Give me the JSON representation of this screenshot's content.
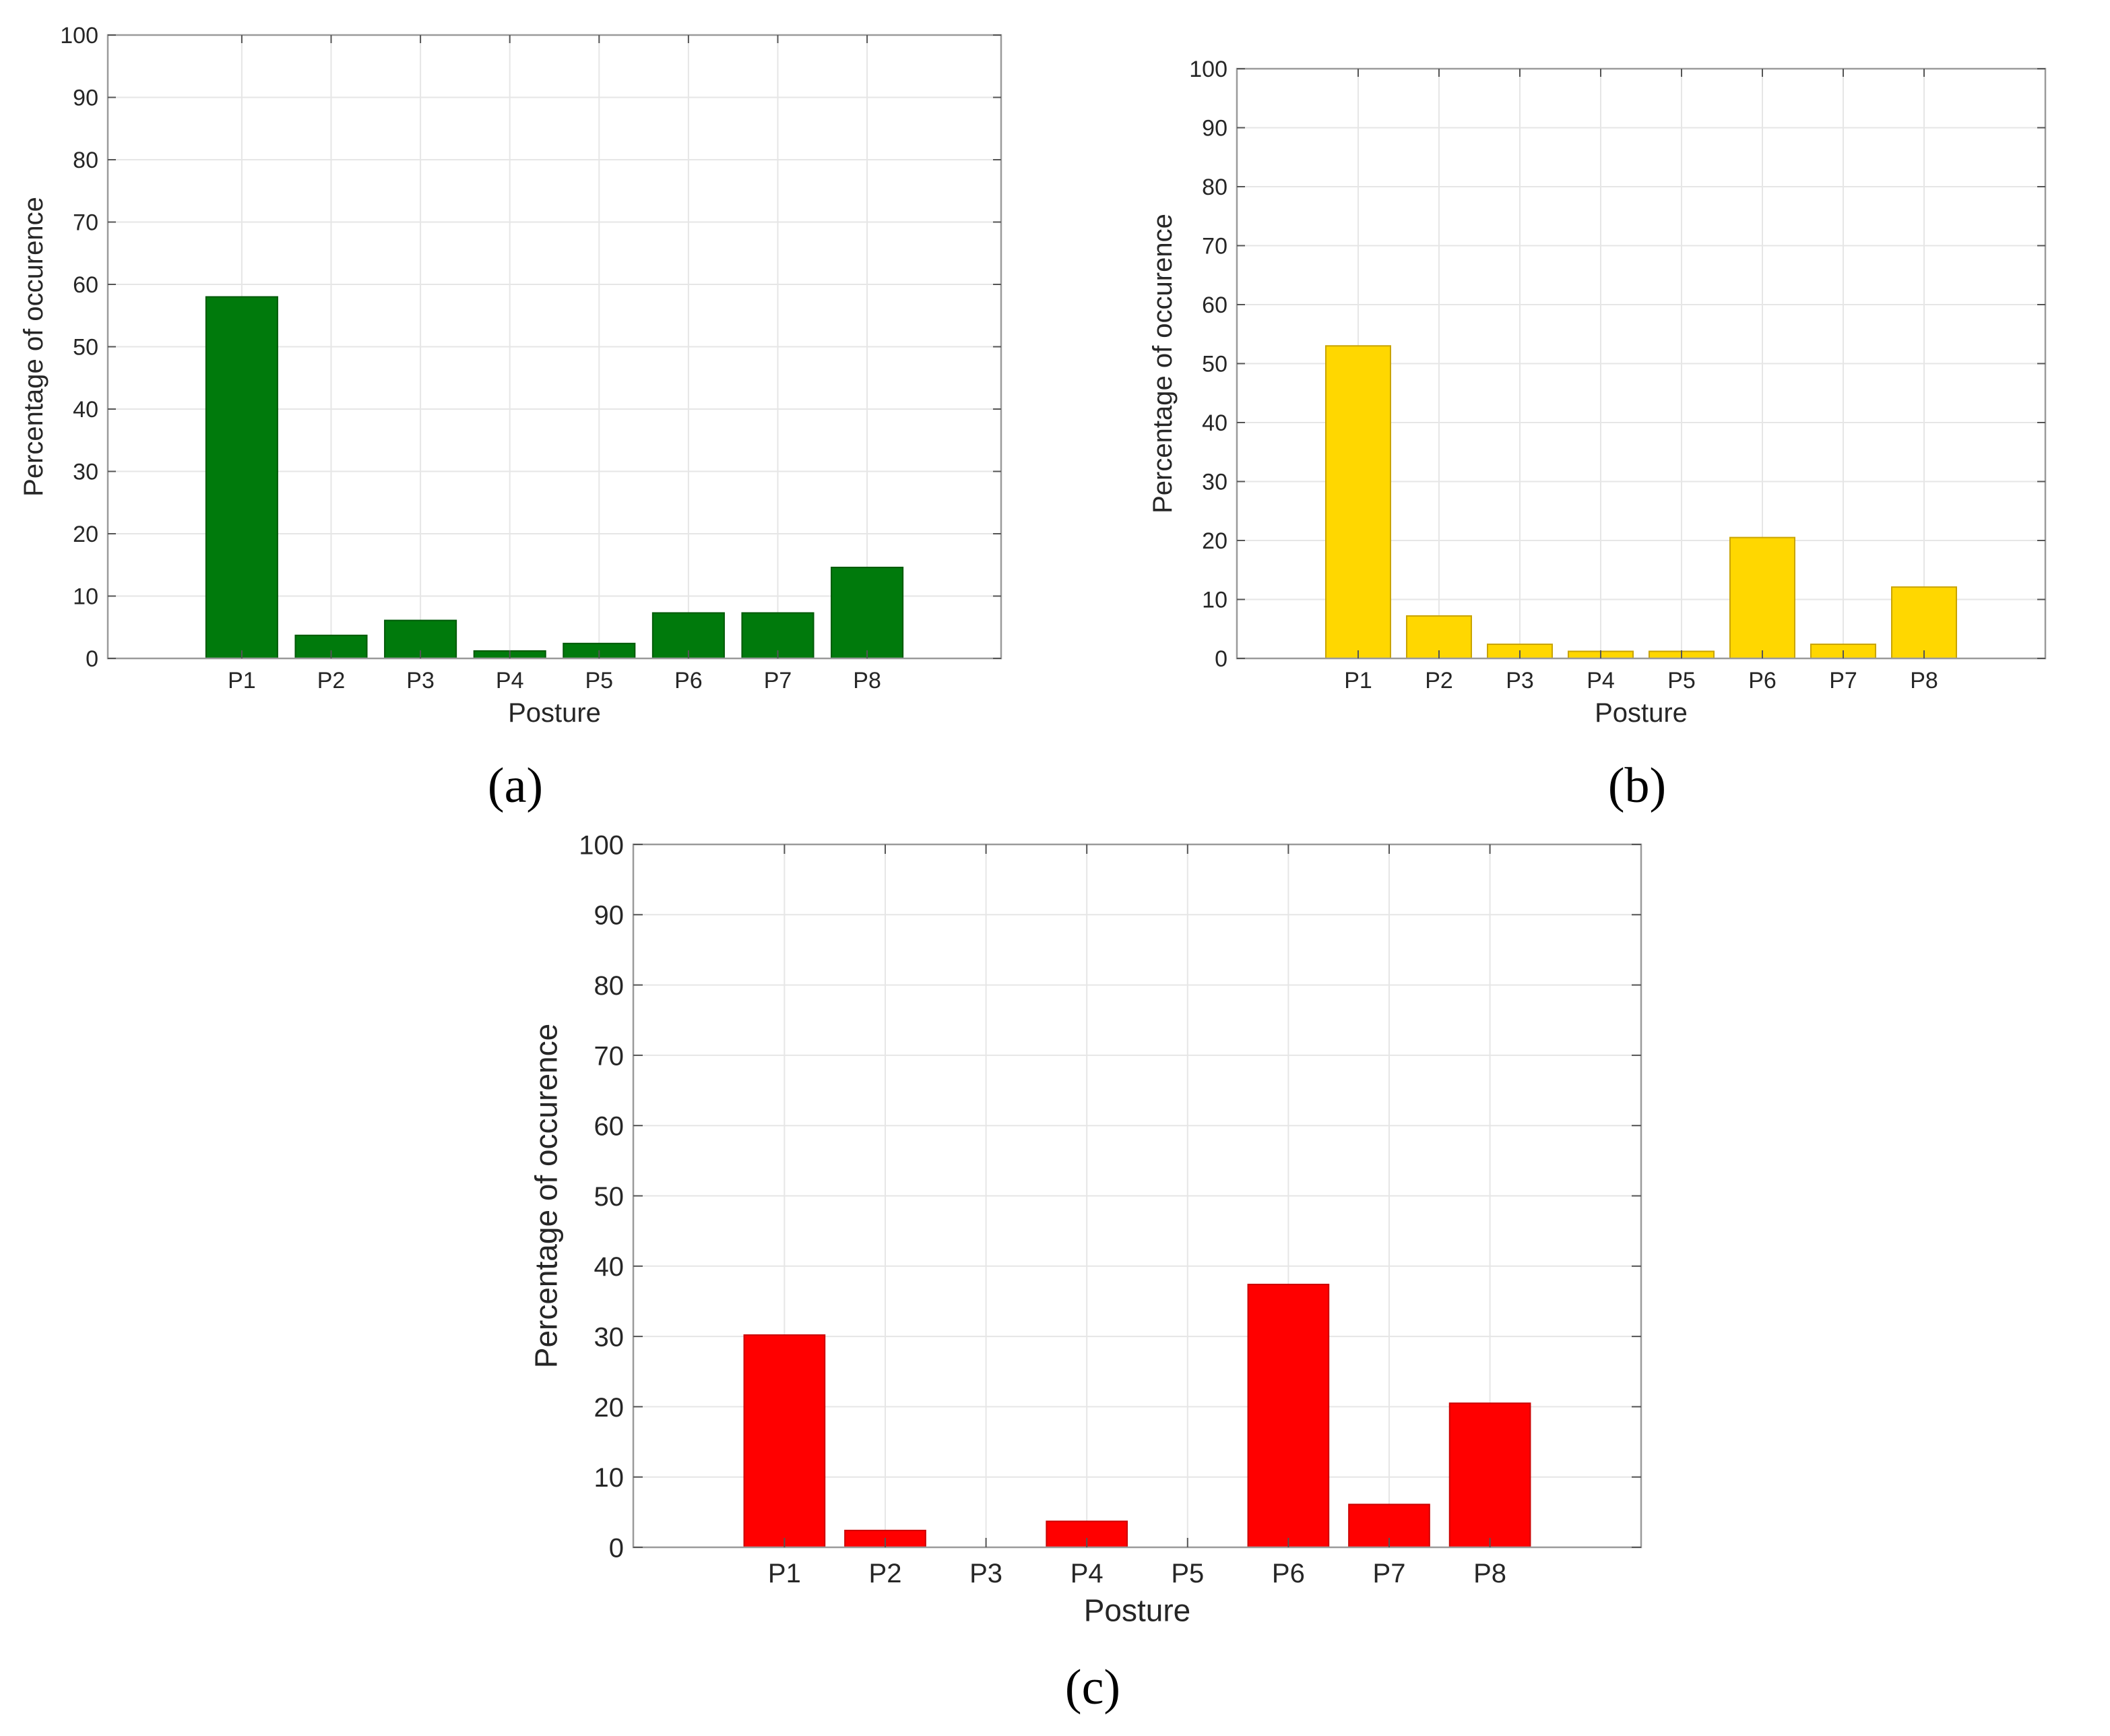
{
  "chart_data": [
    {
      "type": "bar",
      "panel_label": "a",
      "color": "#007a0c",
      "edge_color": "#005a08",
      "categories": [
        "P1",
        "P2",
        "P3",
        "P4",
        "P5",
        "P6",
        "P7",
        "P8"
      ],
      "values": [
        58,
        3.7,
        6.1,
        1.2,
        2.4,
        7.3,
        7.3,
        14.6
      ],
      "xlabel": "Posture",
      "ylabel": "Percentage of occurence",
      "ylim": [
        0,
        100
      ],
      "yticks": [
        0,
        10,
        20,
        30,
        40,
        50,
        60,
        70,
        80,
        90,
        100
      ],
      "grid": true
    },
    {
      "type": "bar",
      "panel_label": "b",
      "color": "#ffd700",
      "edge_color": "#c9a400",
      "categories": [
        "P1",
        "P2",
        "P3",
        "P4",
        "P5",
        "P6",
        "P7",
        "P8"
      ],
      "values": [
        53,
        7.2,
        2.4,
        1.2,
        1.2,
        20.5,
        2.4,
        12.1
      ],
      "xlabel": "Posture",
      "ylabel": "Percentage of occurence",
      "ylim": [
        0,
        100
      ],
      "yticks": [
        0,
        10,
        20,
        30,
        40,
        50,
        60,
        70,
        80,
        90,
        100
      ],
      "grid": true
    },
    {
      "type": "bar",
      "panel_label": "c",
      "color": "#ff0000",
      "edge_color": "#cc0000",
      "categories": [
        "P1",
        "P2",
        "P3",
        "P4",
        "P5",
        "P6",
        "P7",
        "P8"
      ],
      "values": [
        30.2,
        2.4,
        0,
        3.7,
        0,
        37.4,
        6.1,
        20.5
      ],
      "xlabel": "Posture",
      "ylabel": "Percentage of occurence",
      "ylim": [
        0,
        100
      ],
      "yticks": [
        0,
        10,
        20,
        30,
        40,
        50,
        60,
        70,
        80,
        90,
        100
      ],
      "grid": true
    }
  ],
  "captions": [
    "(a)",
    "(b)",
    "(c)"
  ]
}
